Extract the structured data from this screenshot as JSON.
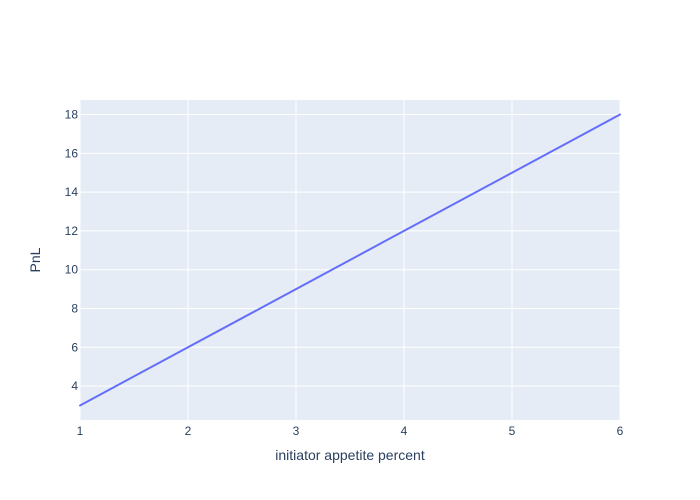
{
  "chart_data": {
    "type": "line",
    "title": "",
    "xlabel": "initiator appetite percent",
    "ylabel": "PnL",
    "xlim": [
      1,
      6
    ],
    "ylim": [
      2.25,
      18.75
    ],
    "x_ticks": [
      1,
      2,
      3,
      4,
      5,
      6
    ],
    "y_ticks": [
      4,
      6,
      8,
      10,
      12,
      14,
      16,
      18
    ],
    "grid": true,
    "series": [
      {
        "x": [
          1,
          2,
          3,
          4,
          5,
          6
        ],
        "values": [
          3,
          6,
          9,
          12,
          15,
          18
        ],
        "color": "#636efa"
      }
    ],
    "colors": {
      "plot_background": "#e5ecf6",
      "gridline": "#ffffff",
      "text": "#2a3f5f"
    }
  }
}
